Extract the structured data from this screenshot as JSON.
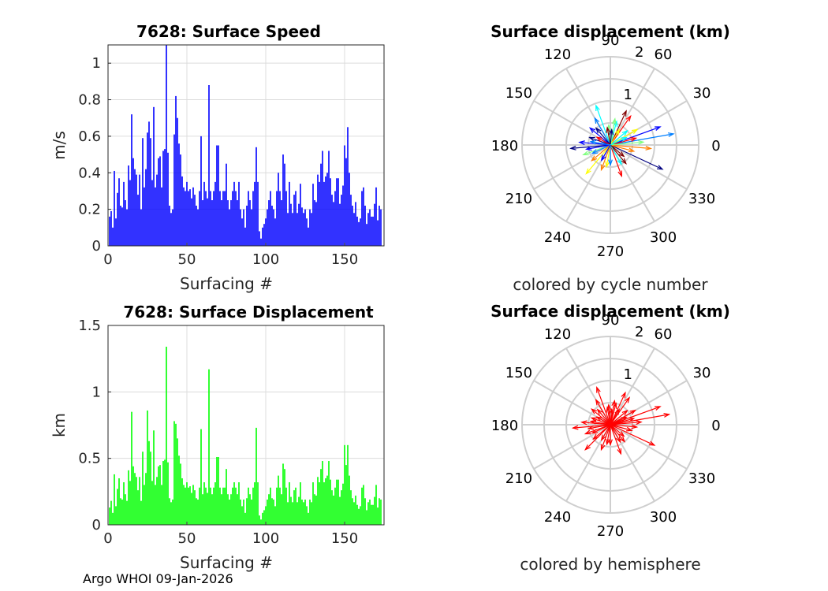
{
  "footer": "Argo WHOI 09-Jan-2026",
  "chart_data": [
    {
      "id": "speed",
      "type": "bar",
      "title": "7628: Surface Speed",
      "xlabel": "Surfacing #",
      "ylabel": "m/s",
      "xlim": [
        0,
        175
      ],
      "ylim": [
        0,
        1.1
      ],
      "xticks": [
        0,
        50,
        100,
        150
      ],
      "yticks": [
        0,
        0.2,
        0.4,
        0.6,
        0.8,
        1
      ],
      "ytick_labels": [
        "0",
        "0.2",
        "0.4",
        "0.6",
        "0.8",
        "1"
      ],
      "color": "#0000ff",
      "grid": true,
      "values": [
        0.16,
        0.19,
        0.1,
        0.41,
        0.15,
        0.29,
        0.37,
        0.22,
        0.21,
        0.35,
        0.25,
        0.2,
        0.44,
        0.36,
        0.72,
        0.48,
        0.42,
        0.39,
        0.28,
        0.39,
        0.2,
        0.59,
        0.32,
        0.42,
        0.62,
        0.68,
        0.59,
        0.36,
        0.76,
        0.32,
        0.39,
        0.48,
        0.49,
        0.32,
        0.52,
        0.53,
        1.12,
        0.51,
        0.22,
        0.18,
        0.2,
        0.61,
        0.82,
        0.7,
        0.56,
        0.5,
        0.38,
        0.32,
        0.3,
        0.35,
        0.3,
        0.31,
        0.26,
        0.32,
        0.28,
        0.22,
        0.2,
        0.3,
        0.6,
        0.25,
        0.35,
        0.3,
        0.26,
        0.88,
        0.3,
        0.25,
        0.3,
        0.35,
        0.55,
        0.55,
        0.3,
        0.25,
        0.3,
        0.3,
        0.45,
        0.25,
        0.2,
        0.25,
        0.3,
        0.35,
        0.3,
        0.25,
        0.35,
        0.2,
        0.15,
        0.2,
        0.1,
        0.22,
        0.3,
        0.25,
        0.2,
        0.3,
        0.35,
        0.54,
        0.35,
        0.08,
        0.04,
        0.1,
        0.12,
        0.15,
        0.2,
        0.25,
        0.3,
        0.22,
        0.2,
        0.15,
        0.3,
        0.4,
        0.3,
        0.25,
        0.5,
        0.45,
        0.3,
        0.18,
        0.35,
        0.23,
        0.18,
        0.28,
        0.3,
        0.18,
        0.23,
        0.34,
        0.21,
        0.18,
        0.2,
        0.15,
        0.1,
        0.2,
        0.18,
        0.34,
        0.25,
        0.24,
        0.39,
        0.35,
        0.45,
        0.52,
        0.35,
        0.38,
        0.4,
        0.52,
        0.37,
        0.28,
        0.24,
        0.3,
        0.37,
        0.37,
        0.23,
        0.28,
        0.33,
        0.55,
        0.48,
        0.65,
        0.4,
        0.28,
        0.22,
        0.18,
        0.24,
        0.16,
        0.13,
        0.15,
        0.3,
        0.32,
        0.22,
        0.12,
        0.18,
        0.2,
        0.16,
        0.16,
        0.23,
        0.32,
        0.14,
        0.22,
        0.2
      ]
    },
    {
      "id": "disp",
      "type": "bar",
      "title": "7628: Surface Displacement",
      "xlabel": "Surfacing #",
      "ylabel": "km",
      "xlim": [
        0,
        175
      ],
      "ylim": [
        0,
        1.5
      ],
      "xticks": [
        0,
        50,
        100,
        150
      ],
      "yticks": [
        0,
        0.5,
        1,
        1.5
      ],
      "ytick_labels": [
        "0",
        "0.5",
        "1",
        "1.5"
      ],
      "color": "#00ff00",
      "grid": true,
      "values": [
        0.13,
        0.18,
        0.09,
        0.38,
        0.14,
        0.27,
        0.35,
        0.2,
        0.19,
        0.32,
        0.23,
        0.18,
        0.41,
        0.33,
        0.85,
        0.44,
        0.39,
        0.36,
        0.26,
        0.36,
        0.18,
        0.55,
        0.3,
        0.39,
        0.86,
        0.63,
        0.55,
        0.33,
        0.71,
        0.3,
        0.36,
        0.44,
        0.45,
        0.3,
        0.48,
        0.49,
        1.34,
        0.47,
        0.2,
        0.17,
        0.19,
        0.78,
        0.76,
        0.65,
        0.52,
        0.46,
        0.35,
        0.3,
        0.28,
        0.32,
        0.28,
        0.29,
        0.24,
        0.3,
        0.26,
        0.2,
        0.19,
        0.28,
        0.72,
        0.23,
        0.32,
        0.28,
        0.24,
        1.17,
        0.28,
        0.23,
        0.28,
        0.32,
        0.51,
        0.51,
        0.28,
        0.23,
        0.28,
        0.28,
        0.42,
        0.23,
        0.19,
        0.23,
        0.28,
        0.32,
        0.28,
        0.23,
        0.32,
        0.19,
        0.14,
        0.19,
        0.09,
        0.2,
        0.28,
        0.23,
        0.19,
        0.28,
        0.32,
        0.73,
        0.32,
        0.07,
        0.04,
        0.09,
        0.11,
        0.14,
        0.19,
        0.23,
        0.28,
        0.2,
        0.19,
        0.14,
        0.28,
        0.37,
        0.28,
        0.23,
        0.46,
        0.42,
        0.28,
        0.17,
        0.32,
        0.21,
        0.17,
        0.26,
        0.28,
        0.17,
        0.21,
        0.32,
        0.19,
        0.17,
        0.19,
        0.14,
        0.09,
        0.19,
        0.17,
        0.32,
        0.23,
        0.22,
        0.36,
        0.32,
        0.42,
        0.48,
        0.32,
        0.35,
        0.37,
        0.48,
        0.34,
        0.26,
        0.22,
        0.28,
        0.34,
        0.34,
        0.21,
        0.26,
        0.31,
        0.6,
        0.45,
        0.6,
        0.37,
        0.26,
        0.2,
        0.17,
        0.22,
        0.15,
        0.12,
        0.14,
        0.28,
        0.3,
        0.2,
        0.11,
        0.17,
        0.19,
        0.15,
        0.15,
        0.21,
        0.3,
        0.13,
        0.2,
        0.19
      ]
    },
    {
      "id": "polar_cycle",
      "type": "polar",
      "title": "Surface displacement (km)",
      "xlabel": "colored by cycle number",
      "rmax": 2,
      "rticks": [
        1,
        2
      ],
      "angle_ticks": [
        0,
        30,
        60,
        90,
        120,
        150,
        180,
        210,
        240,
        270,
        300,
        330
      ],
      "color_mode": "cycle",
      "colors": [
        "#00007f",
        "#0000ff",
        "#007fff",
        "#00ffff",
        "#7fff7f",
        "#ffff00",
        "#ff7f00",
        "#ff0000",
        "#7f0000"
      ],
      "arrows": [
        [
          335,
          1.3
        ],
        [
          20,
          1.2
        ],
        [
          10,
          1.45
        ],
        [
          110,
          0.95
        ],
        [
          200,
          0.65
        ],
        [
          230,
          0.85
        ],
        [
          355,
          0.92
        ],
        [
          55,
          0.8
        ],
        [
          65,
          0.85
        ],
        [
          185,
          0.9
        ],
        [
          140,
          0.6
        ],
        [
          120,
          0.7
        ],
        [
          75,
          0.55
        ],
        [
          95,
          0.45
        ],
        [
          30,
          0.7
        ],
        [
          250,
          0.6
        ],
        [
          290,
          0.75
        ],
        [
          310,
          0.55
        ],
        [
          160,
          0.5
        ],
        [
          175,
          0.7
        ],
        [
          205,
          0.45
        ],
        [
          40,
          0.5
        ],
        [
          80,
          0.6
        ],
        [
          260,
          0.5
        ],
        [
          345,
          0.55
        ],
        [
          15,
          0.6
        ],
        [
          100,
          0.4
        ],
        [
          130,
          0.5
        ],
        [
          190,
          0.55
        ],
        [
          270,
          0.45
        ],
        [
          300,
          0.5
        ],
        [
          5,
          0.75
        ],
        [
          60,
          0.4
        ],
        [
          220,
          0.55
        ],
        [
          150,
          0.35
        ],
        [
          320,
          0.4
        ],
        [
          85,
          0.35
        ],
        [
          240,
          0.4
        ],
        [
          170,
          0.45
        ],
        [
          25,
          0.4
        ]
      ]
    },
    {
      "id": "polar_hemi",
      "type": "polar",
      "title": "Surface displacement (km)",
      "xlabel": "colored by hemisphere",
      "rmax": 2,
      "rticks": [
        1,
        2
      ],
      "angle_ticks": [
        0,
        30,
        60,
        90,
        120,
        150,
        180,
        210,
        240,
        270,
        300,
        330
      ],
      "color_mode": "single",
      "colors": [
        "#ff0000"
      ],
      "arrows": [
        [
          20,
          1.2
        ],
        [
          335,
          1.1
        ],
        [
          10,
          1.35
        ],
        [
          110,
          0.9
        ],
        [
          185,
          0.85
        ],
        [
          225,
          0.8
        ],
        [
          55,
          0.75
        ],
        [
          65,
          0.8
        ],
        [
          140,
          0.55
        ],
        [
          120,
          0.65
        ],
        [
          75,
          0.5
        ],
        [
          95,
          0.45
        ],
        [
          30,
          0.65
        ],
        [
          250,
          0.6
        ],
        [
          290,
          0.7
        ],
        [
          310,
          0.5
        ],
        [
          160,
          0.45
        ],
        [
          175,
          0.65
        ],
        [
          205,
          0.45
        ],
        [
          40,
          0.5
        ],
        [
          80,
          0.55
        ],
        [
          260,
          0.45
        ],
        [
          345,
          0.5
        ],
        [
          15,
          0.55
        ],
        [
          100,
          0.4
        ],
        [
          130,
          0.45
        ],
        [
          190,
          0.5
        ],
        [
          270,
          0.45
        ],
        [
          300,
          0.45
        ],
        [
          5,
          0.7
        ],
        [
          60,
          0.4
        ],
        [
          220,
          0.5
        ],
        [
          150,
          0.35
        ],
        [
          320,
          0.4
        ],
        [
          85,
          0.35
        ],
        [
          240,
          0.4
        ],
        [
          170,
          0.45
        ],
        [
          25,
          0.4
        ],
        [
          355,
          0.6
        ],
        [
          200,
          0.6
        ]
      ]
    }
  ]
}
